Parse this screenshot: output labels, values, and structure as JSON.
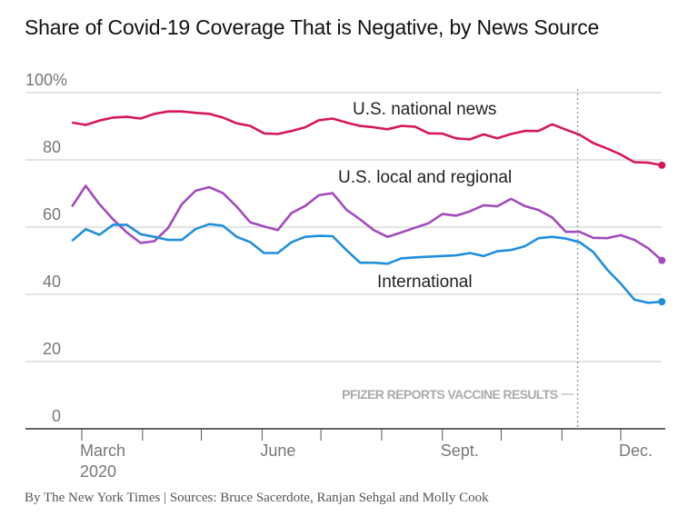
{
  "chart_data": {
    "type": "line",
    "title": "Share of Covid-19 Coverage That is Negative, by News Source",
    "source": "By The New York Times | Sources: Bruce Sacerdote, Ranjan Sehgal and Molly Cook",
    "xlabel": "",
    "ylabel": "",
    "ylim": [
      0,
      100
    ],
    "yticks": [
      {
        "value": 100,
        "label": "100%"
      },
      {
        "value": 80,
        "label": "80"
      },
      {
        "value": 60,
        "label": "60"
      },
      {
        "value": 40,
        "label": "40"
      },
      {
        "value": 20,
        "label": "20"
      },
      {
        "value": 0,
        "label": "0"
      }
    ],
    "xticks": [
      {
        "date": "2020-03-01",
        "label": "March",
        "sublabel": "2020"
      },
      {
        "date": "2020-04-01",
        "label": ""
      },
      {
        "date": "2020-05-01",
        "label": ""
      },
      {
        "date": "2020-06-01",
        "label": "June"
      },
      {
        "date": "2020-07-01",
        "label": ""
      },
      {
        "date": "2020-08-01",
        "label": ""
      },
      {
        "date": "2020-09-01",
        "label": "Sept."
      },
      {
        "date": "2020-10-01",
        "label": ""
      },
      {
        "date": "2020-11-01",
        "label": ""
      },
      {
        "date": "2020-12-01",
        "label": "Dec."
      }
    ],
    "grid": true,
    "x_start": "2020-02-25",
    "x_interval_days": 7,
    "annotation": {
      "date": "2020-11-09",
      "label": "PFIZER REPORTS VACCINE RESULTS"
    },
    "series": [
      {
        "name": "U.S. national news",
        "color": "#d6175d",
        "values": [
          91.1,
          90.4,
          91.7,
          92.6,
          92.8,
          92.3,
          93.7,
          94.4,
          94.4,
          94.0,
          93.7,
          92.6,
          90.9,
          90.1,
          87.9,
          87.7,
          88.6,
          89.7,
          91.8,
          92.3,
          91.1,
          90.1,
          89.7,
          89.1,
          90.1,
          89.9,
          87.9,
          87.8,
          86.4,
          86.1,
          87.6,
          86.4,
          87.7,
          88.6,
          88.6,
          90.6,
          89.0,
          87.5,
          85.0,
          83.4,
          81.6,
          79.3,
          79.2,
          78.4
        ]
      },
      {
        "name": "U.S. local and regional",
        "color": "#a24bbb",
        "values": [
          66.1,
          72.3,
          66.8,
          62.3,
          58.4,
          55.3,
          55.8,
          59.7,
          66.8,
          70.8,
          71.9,
          70.1,
          66.1,
          61.4,
          60.2,
          59.1,
          64.2,
          66.3,
          69.5,
          70.1,
          65.2,
          62.3,
          59.1,
          57.1,
          58.4,
          59.8,
          61.2,
          63.9,
          63.4,
          64.7,
          66.5,
          66.2,
          68.4,
          66.3,
          65.1,
          62.9,
          58.6,
          58.6,
          56.8,
          56.7,
          57.6,
          56.2,
          53.7,
          50.1
        ]
      },
      {
        "name": "International",
        "color": "#1f8fdb",
        "values": [
          55.9,
          59.4,
          57.7,
          60.7,
          60.7,
          57.9,
          57.1,
          56.2,
          56.2,
          59.4,
          60.9,
          60.4,
          57.1,
          55.5,
          52.3,
          52.3,
          55.5,
          57.1,
          57.4,
          57.3,
          53.2,
          49.4,
          49.4,
          49.1,
          50.7,
          51.0,
          51.2,
          51.4,
          51.6,
          52.3,
          51.4,
          52.8,
          53.2,
          54.3,
          56.7,
          57.1,
          56.6,
          55.5,
          52.6,
          47.4,
          43.2,
          38.4,
          37.5,
          37.8
        ]
      }
    ]
  }
}
